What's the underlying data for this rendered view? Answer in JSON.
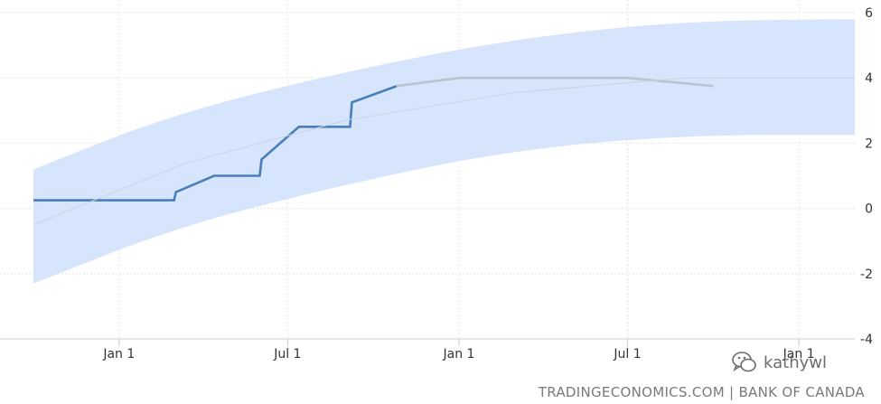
{
  "chart_data": {
    "type": "line",
    "title": "",
    "xlabel": "",
    "ylabel": "",
    "x_tick_labels": [
      "Jan 1",
      "Jul 1",
      "Jan 1",
      "Jul 1",
      "Jan 1"
    ],
    "y_ticks": [
      6,
      4,
      2,
      0,
      -2,
      -4
    ],
    "ylim": [
      -4,
      6
    ],
    "x_domain": [
      "2021-10-01",
      "2024-03-01"
    ],
    "x_ticks": [
      "2022-01-01",
      "2022-07-01",
      "2023-01-01",
      "2023-07-01",
      "2024-01-01"
    ],
    "grid": true,
    "series": [
      {
        "name": "",
        "color": "#4a7ebb",
        "style": "step-line",
        "points": [
          [
            "2021-10-01",
            0.25
          ],
          [
            "2022-03-01",
            0.25
          ],
          [
            "2022-03-03",
            0.5
          ],
          [
            "2022-04-13",
            1.0
          ],
          [
            "2022-06-01",
            1.0
          ],
          [
            "2022-06-03",
            1.5
          ],
          [
            "2022-07-13",
            2.5
          ],
          [
            "2022-09-06",
            2.5
          ],
          [
            "2022-09-08",
            3.25
          ],
          [
            "2022-10-26",
            3.75
          ]
        ]
      },
      {
        "name": "",
        "color": "#b8c4d4",
        "style": "forecast",
        "points": [
          [
            "2022-10-26",
            3.75
          ],
          [
            "2023-01-01",
            4.0
          ],
          [
            "2023-07-01",
            4.0
          ],
          [
            "2023-10-01",
            3.75
          ]
        ]
      },
      {
        "name": "",
        "color": "#c9d3e0",
        "style": "trend",
        "points": [
          [
            "2021-10-01",
            -0.5
          ],
          [
            "2022-03-15",
            1.4
          ],
          [
            "2022-09-01",
            2.7
          ],
          [
            "2023-03-01",
            3.55
          ],
          [
            "2023-09-01",
            4.0
          ],
          [
            "2024-03-01",
            4.0
          ]
        ]
      }
    ],
    "band": {
      "color": "#d6e5fb",
      "upper": [
        [
          "2021-10-01",
          1.2
        ],
        [
          "2022-03-01",
          2.9
        ],
        [
          "2022-09-01",
          4.2
        ],
        [
          "2023-03-01",
          5.2
        ],
        [
          "2023-09-01",
          5.75
        ],
        [
          "2024-03-01",
          5.8
        ]
      ],
      "lower": [
        [
          "2021-10-01",
          -2.3
        ],
        [
          "2022-03-01",
          -0.6
        ],
        [
          "2022-09-01",
          0.75
        ],
        [
          "2023-03-01",
          1.8
        ],
        [
          "2023-09-01",
          2.25
        ],
        [
          "2024-03-01",
          2.25
        ]
      ]
    }
  },
  "watermark": {
    "text": "kathywl",
    "icon": "wechat-icon"
  },
  "source": "TRADINGECONOMICS.COM | BANK OF CANADA"
}
